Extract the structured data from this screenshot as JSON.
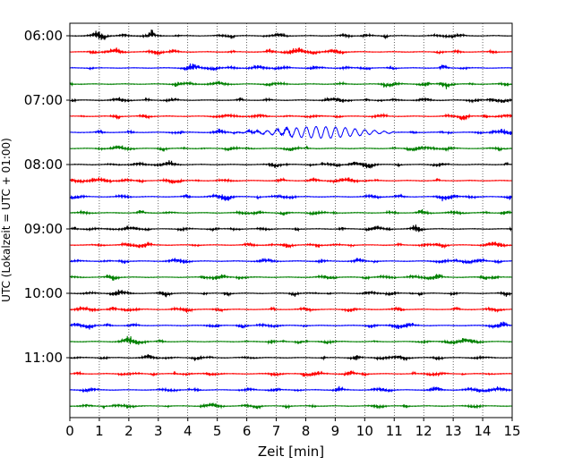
{
  "chart_data": {
    "type": "line",
    "xlabel": "Zeit  [min]",
    "ylabel": "UTC (Lokalzeit = UTC + 01:00)",
    "xlim": [
      0,
      15
    ],
    "x_ticks": [
      0,
      1,
      2,
      3,
      4,
      5,
      6,
      7,
      8,
      9,
      10,
      11,
      12,
      13,
      14,
      15
    ],
    "grid": "vertical dotted",
    "row_minutes": 15,
    "y_ticks": [
      "06:00",
      "07:00",
      "08:00",
      "09:00",
      "10:00",
      "11:00"
    ],
    "rows": [
      "06:00",
      "06:15",
      "06:30",
      "06:45",
      "07:00",
      "07:15",
      "07:30",
      "07:45",
      "08:00",
      "08:15",
      "08:30",
      "08:45",
      "09:00",
      "09:15",
      "09:30",
      "09:45",
      "10:00",
      "10:15",
      "10:30",
      "10:45",
      "11:00",
      "11:15",
      "11:30",
      "11:45"
    ],
    "colors": [
      "#000000",
      "#ff0000",
      "#0000ff",
      "#008000"
    ],
    "event": {
      "row": "07:30",
      "start_min": 5.0,
      "peak_min": 8.5,
      "end_min": 11.0
    }
  }
}
